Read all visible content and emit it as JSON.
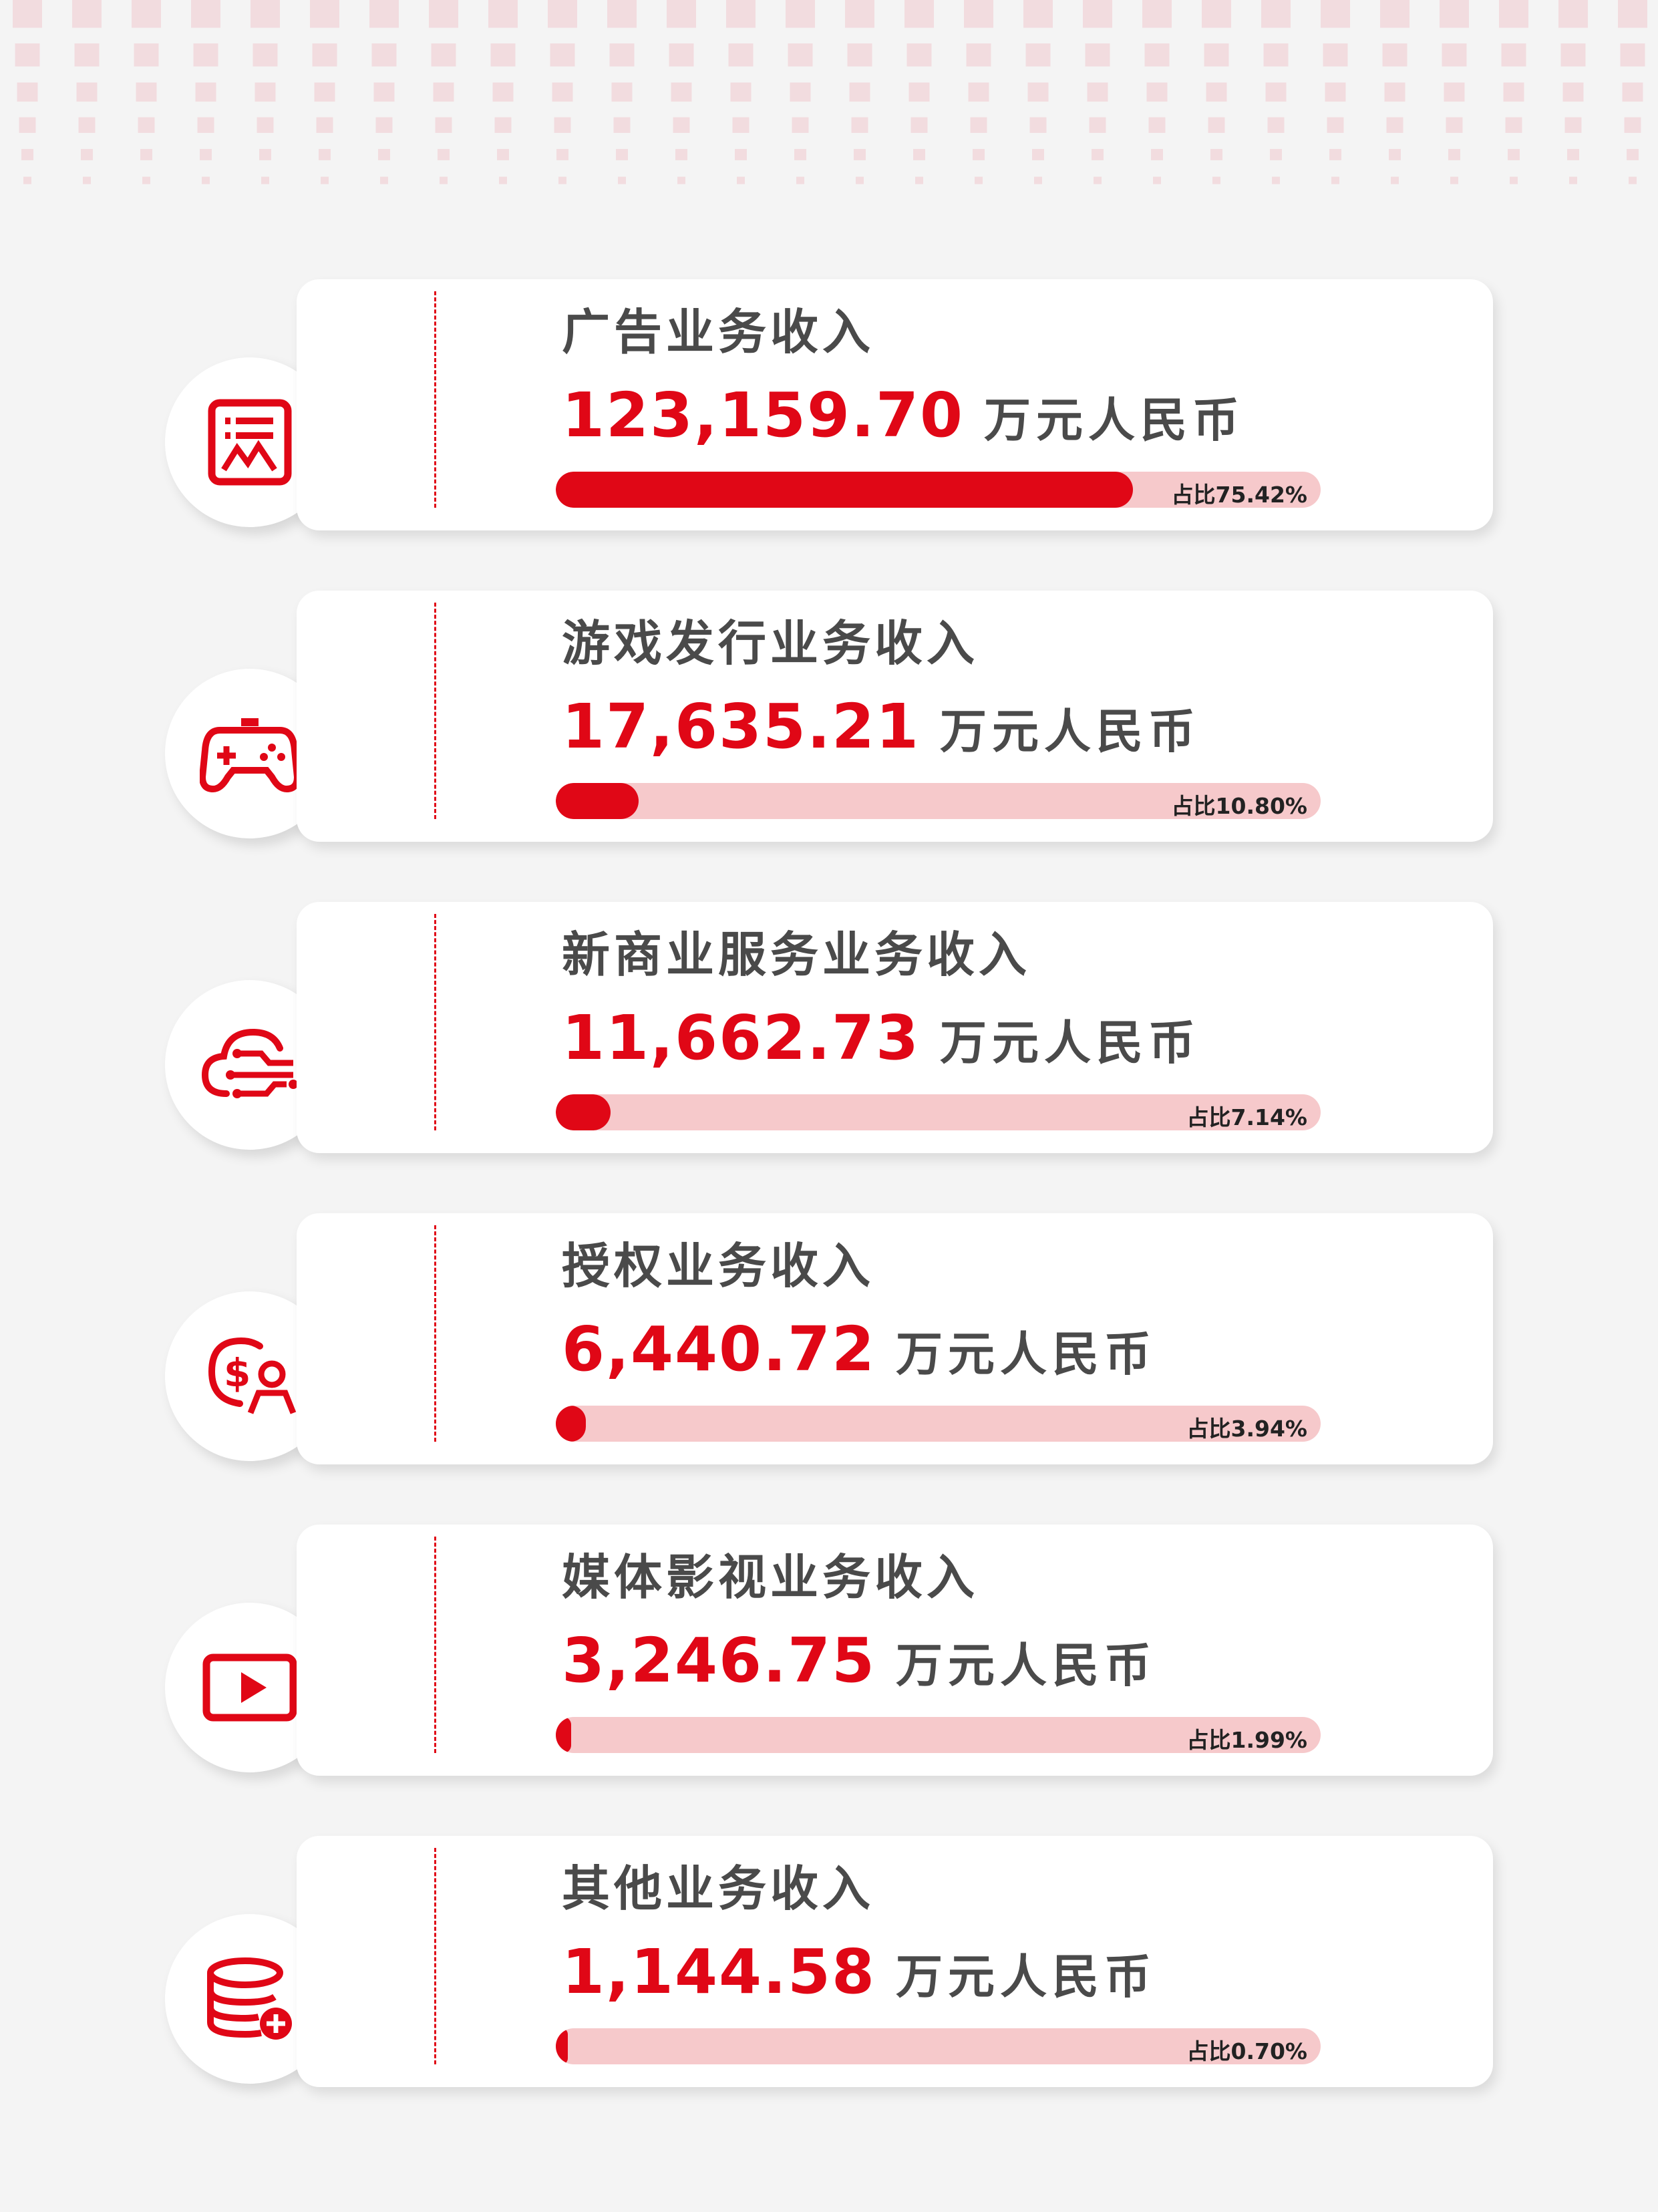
{
  "colors": {
    "accent": "#e00716",
    "bar_track": "#f6c9cb",
    "background": "#f4f4f4",
    "pattern": "#f2dcdf"
  },
  "unit": "万元人民币",
  "items": [
    {
      "icon": "image-report-icon",
      "title": "广告业务收入",
      "amount": "123,159.70",
      "share_label": "占比75.42%",
      "share": 75.42
    },
    {
      "icon": "gamepad-icon",
      "title": "游戏发行业务收入",
      "amount": "17,635.21",
      "share_label": "占比10.80%",
      "share": 10.8
    },
    {
      "icon": "cloud-network-icon",
      "title": "新商业服务业务收入",
      "amount": "11,662.73",
      "share_label": "占比7.14%",
      "share": 7.14
    },
    {
      "icon": "dollar-user-icon",
      "title": "授权业务收入",
      "amount": "6,440.72",
      "share_label": "占比3.94%",
      "share": 3.94
    },
    {
      "icon": "video-play-icon",
      "title": "媒体影视业务收入",
      "amount": "3,246.75",
      "share_label": "占比1.99%",
      "share": 1.99
    },
    {
      "icon": "database-add-icon",
      "title": "其他业务收入",
      "amount": "1,144.58",
      "share_label": "占比0.70%",
      "share": 0.7
    }
  ]
}
